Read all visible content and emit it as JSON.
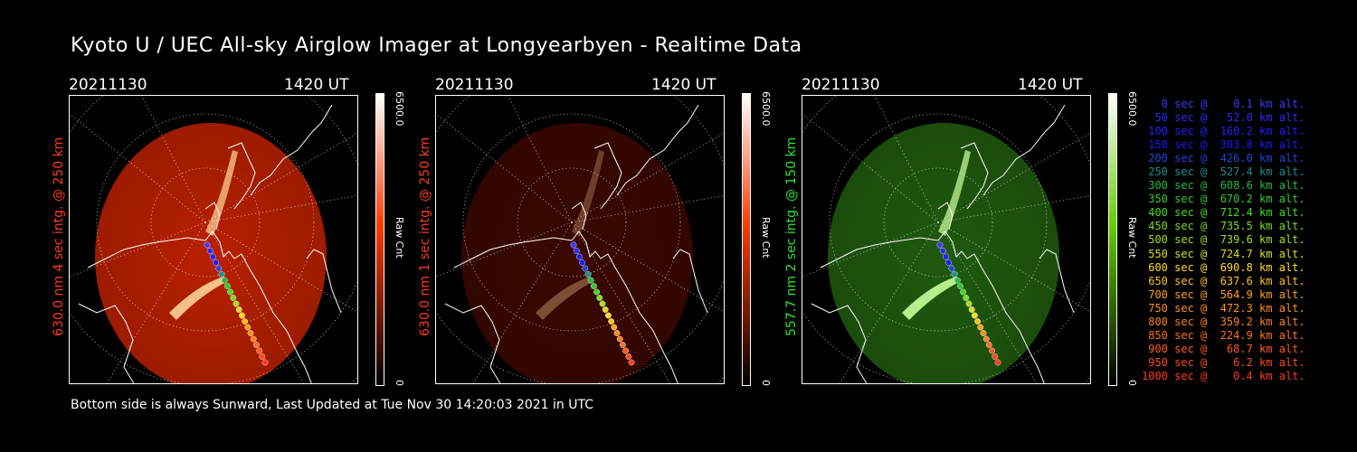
{
  "title": "Kyoto U / UEC All-sky Airglow Imager at Longyearbyen - Realtime Data",
  "footer": "Bottom side is always Sunward, Last Updated at Tue Nov 30 14:20:03 2021 in UTC",
  "panels": [
    {
      "date": "20211130",
      "time": "1420 UT",
      "ylabel": "630.0 nm 4 sec intg. @ 250 km",
      "label_color": "#ff3a1e",
      "cbar_max": "6500.0",
      "cbar_min": "0",
      "cbar_unit": "Raw Cnt",
      "cbar_color": "#ff3a00",
      "image_color": "#b82000"
    },
    {
      "date": "20211130",
      "time": "1420 UT",
      "ylabel": "630.0 nm 1 sec intg. @ 250 km",
      "label_color": "#ff3a1e",
      "cbar_max": "6500.0",
      "cbar_min": "0",
      "cbar_unit": "Raw Cnt",
      "cbar_color": "#ff3a00",
      "image_color": "#3a0800"
    },
    {
      "date": "20211130",
      "time": "1420 UT",
      "ylabel": "557.7 nm 2 sec intg. @ 150 km",
      "label_color": "#2ee62e",
      "cbar_max": "6500.0",
      "cbar_min": "0",
      "cbar_unit": "Raw Cnt",
      "cbar_color": "#66cc00",
      "image_color": "#1f5a0e"
    }
  ],
  "legend": [
    {
      "text": "   0 sec @    0.1 km alt.",
      "color": "#3a3aff"
    },
    {
      "text": "  50 sec @   52.0 km alt.",
      "color": "#2a2aff"
    },
    {
      "text": " 100 sec @  160.2 km alt.",
      "color": "#2020ff"
    },
    {
      "text": " 150 sec @  303.8 km alt.",
      "color": "#1a1aff"
    },
    {
      "text": " 200 sec @  426.0 km alt.",
      "color": "#2244dd"
    },
    {
      "text": " 250 sec @  527.4 km alt.",
      "color": "#1c8f8f"
    },
    {
      "text": " 300 sec @  608.6 km alt.",
      "color": "#22bb44"
    },
    {
      "text": " 350 sec @  670.2 km alt.",
      "color": "#33cc33"
    },
    {
      "text": " 400 sec @  712.4 km alt.",
      "color": "#44dd22"
    },
    {
      "text": " 450 sec @  735.5 km alt.",
      "color": "#77dd22"
    },
    {
      "text": " 500 sec @  739.6 km alt.",
      "color": "#aadd22"
    },
    {
      "text": " 550 sec @  724.7 km alt.",
      "color": "#dddd22"
    },
    {
      "text": " 600 sec @  690.8 km alt.",
      "color": "#ffdd22"
    },
    {
      "text": " 650 sec @  637.6 km alt.",
      "color": "#ffc020"
    },
    {
      "text": " 700 sec @  564.9 km alt.",
      "color": "#ffa020"
    },
    {
      "text": " 750 sec @  472.3 km alt.",
      "color": "#ff9020"
    },
    {
      "text": " 800 sec @  359.2 km alt.",
      "color": "#ff8020"
    },
    {
      "text": " 850 sec @  224.9 km alt.",
      "color": "#ff7020"
    },
    {
      "text": " 900 sec @   68.7 km alt.",
      "color": "#ff5a1e"
    },
    {
      "text": " 950 sec @    6.2 km alt.",
      "color": "#ff4a1e"
    },
    {
      "text": "1000 sec @    0.4 km alt.",
      "color": "#ff3a1e"
    }
  ]
}
